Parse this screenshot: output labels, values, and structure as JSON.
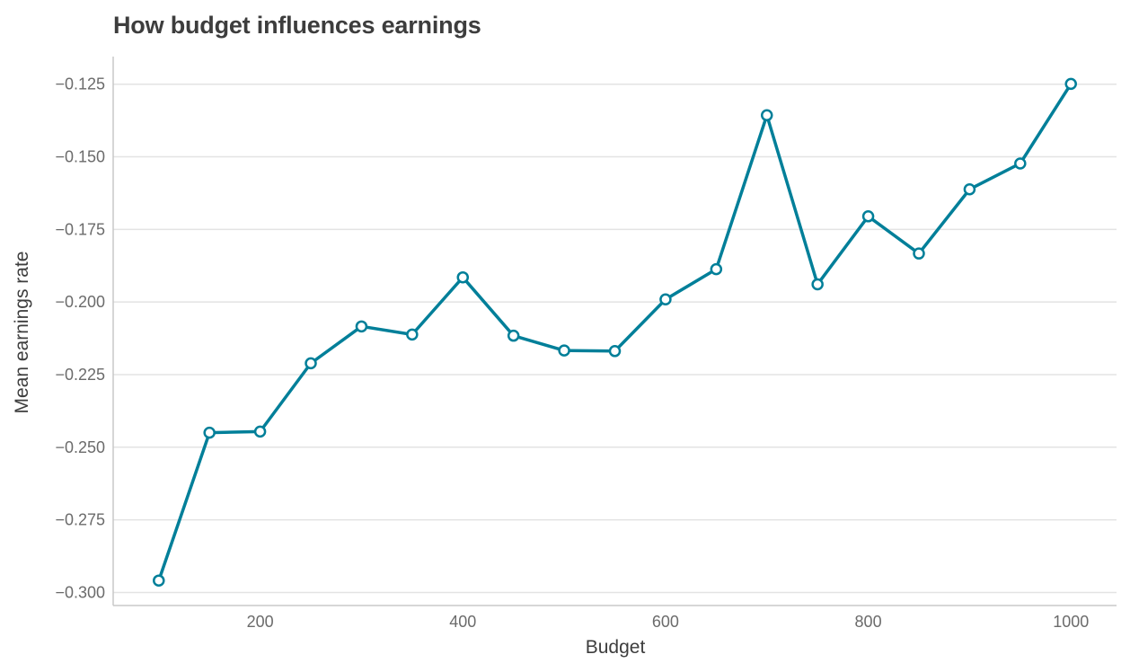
{
  "chart_data": {
    "type": "line",
    "title": "How budget influences earnings",
    "xlabel": "Budget",
    "ylabel": "Mean earnings rate",
    "xlim": [
      55,
      1045
    ],
    "ylim": [
      -0.3045,
      -0.1155
    ],
    "xticks": [
      200,
      400,
      600,
      800,
      1000
    ],
    "yticks": [
      -0.3,
      -0.275,
      -0.25,
      -0.225,
      -0.2,
      -0.175,
      -0.15,
      -0.125
    ],
    "ytick_labels": [
      "−0.300",
      "−0.275",
      "−0.250",
      "−0.225",
      "−0.200",
      "−0.175",
      "−0.150",
      "−0.125"
    ],
    "grid": "horizontal",
    "series": [
      {
        "color": "#007f99",
        "x": [
          100,
          150,
          200,
          250,
          300,
          350,
          400,
          450,
          500,
          550,
          600,
          650,
          700,
          750,
          800,
          850,
          900,
          950,
          1000
        ],
        "y": [
          -0.2959,
          -0.245,
          -0.2446,
          -0.2211,
          -0.2084,
          -0.2112,
          -0.1915,
          -0.2116,
          -0.2167,
          -0.2169,
          -0.1991,
          -0.1887,
          -0.1357,
          -0.1939,
          -0.1705,
          -0.1833,
          -0.1612,
          -0.1523,
          -0.1249
        ]
      }
    ]
  }
}
